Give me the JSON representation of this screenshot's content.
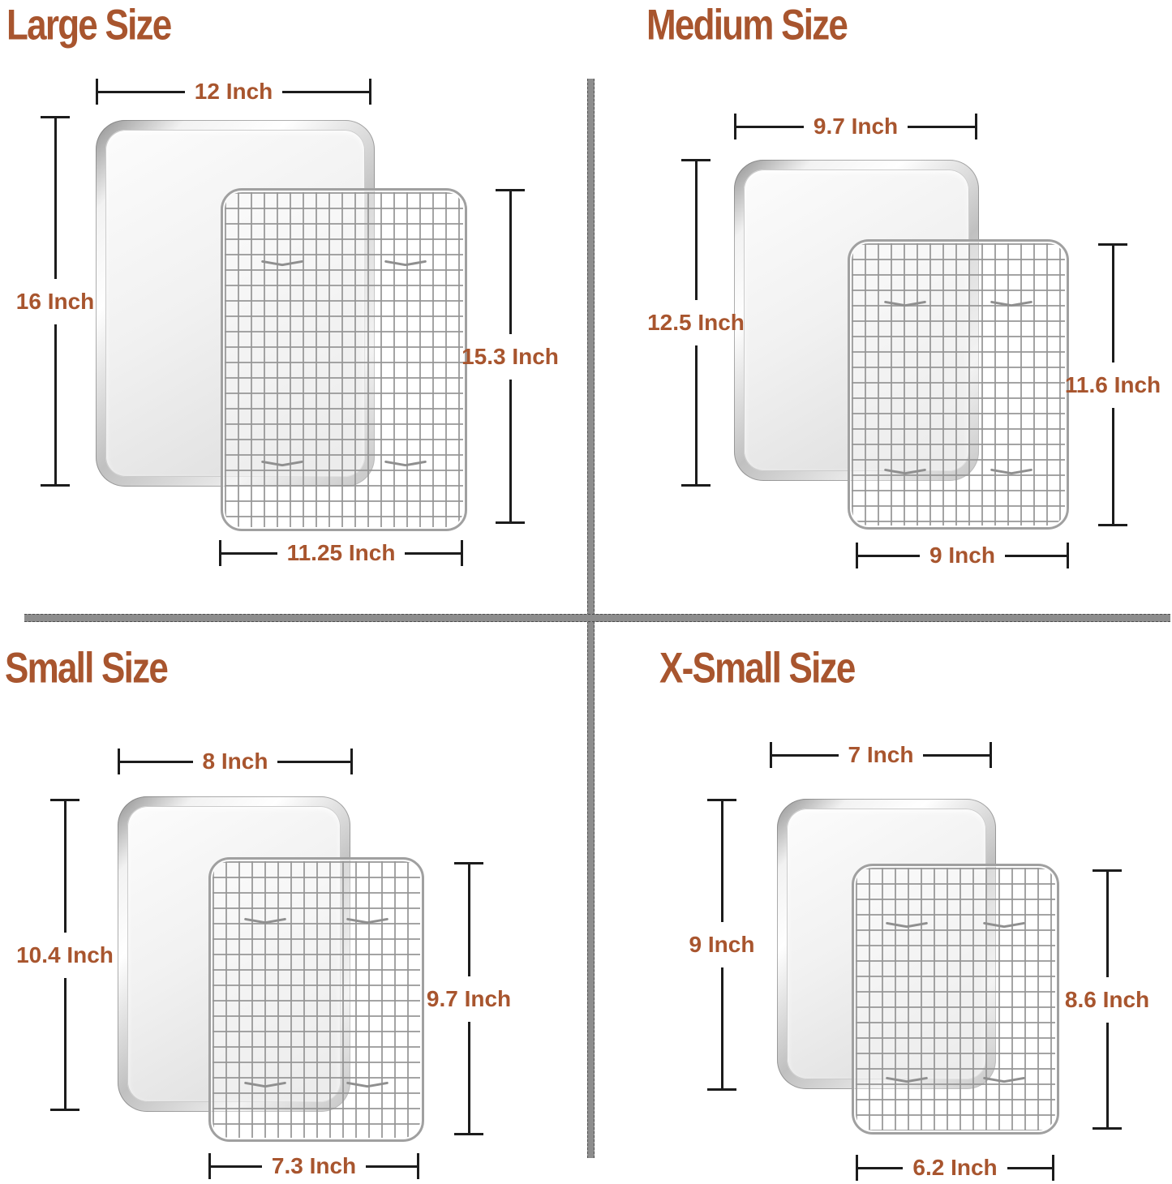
{
  "colors": {
    "accent": "#a8552e",
    "dimension_line": "#1c1c1c",
    "divider": "#8d8d8d"
  },
  "quadrants": {
    "large": {
      "title": "Large Size",
      "pan_width": "12 Inch",
      "pan_height": "16 Inch",
      "rack_height": "15.3 Inch",
      "rack_width": "11.25 Inch"
    },
    "medium": {
      "title": "Medium Size",
      "pan_width": "9.7 Inch",
      "pan_height": "12.5 Inch",
      "rack_height": "11.6 Inch",
      "rack_width": "9 Inch"
    },
    "small": {
      "title": "Small Size",
      "pan_width": "8 Inch",
      "pan_height": "10.4 Inch",
      "rack_height": "9.7 Inch",
      "rack_width": "7.3 Inch"
    },
    "xsmall": {
      "title": "X-Small Size",
      "pan_width": "7 Inch",
      "pan_height": "9 Inch",
      "rack_height": "8.6 Inch",
      "rack_width": "6.2 Inch"
    }
  }
}
